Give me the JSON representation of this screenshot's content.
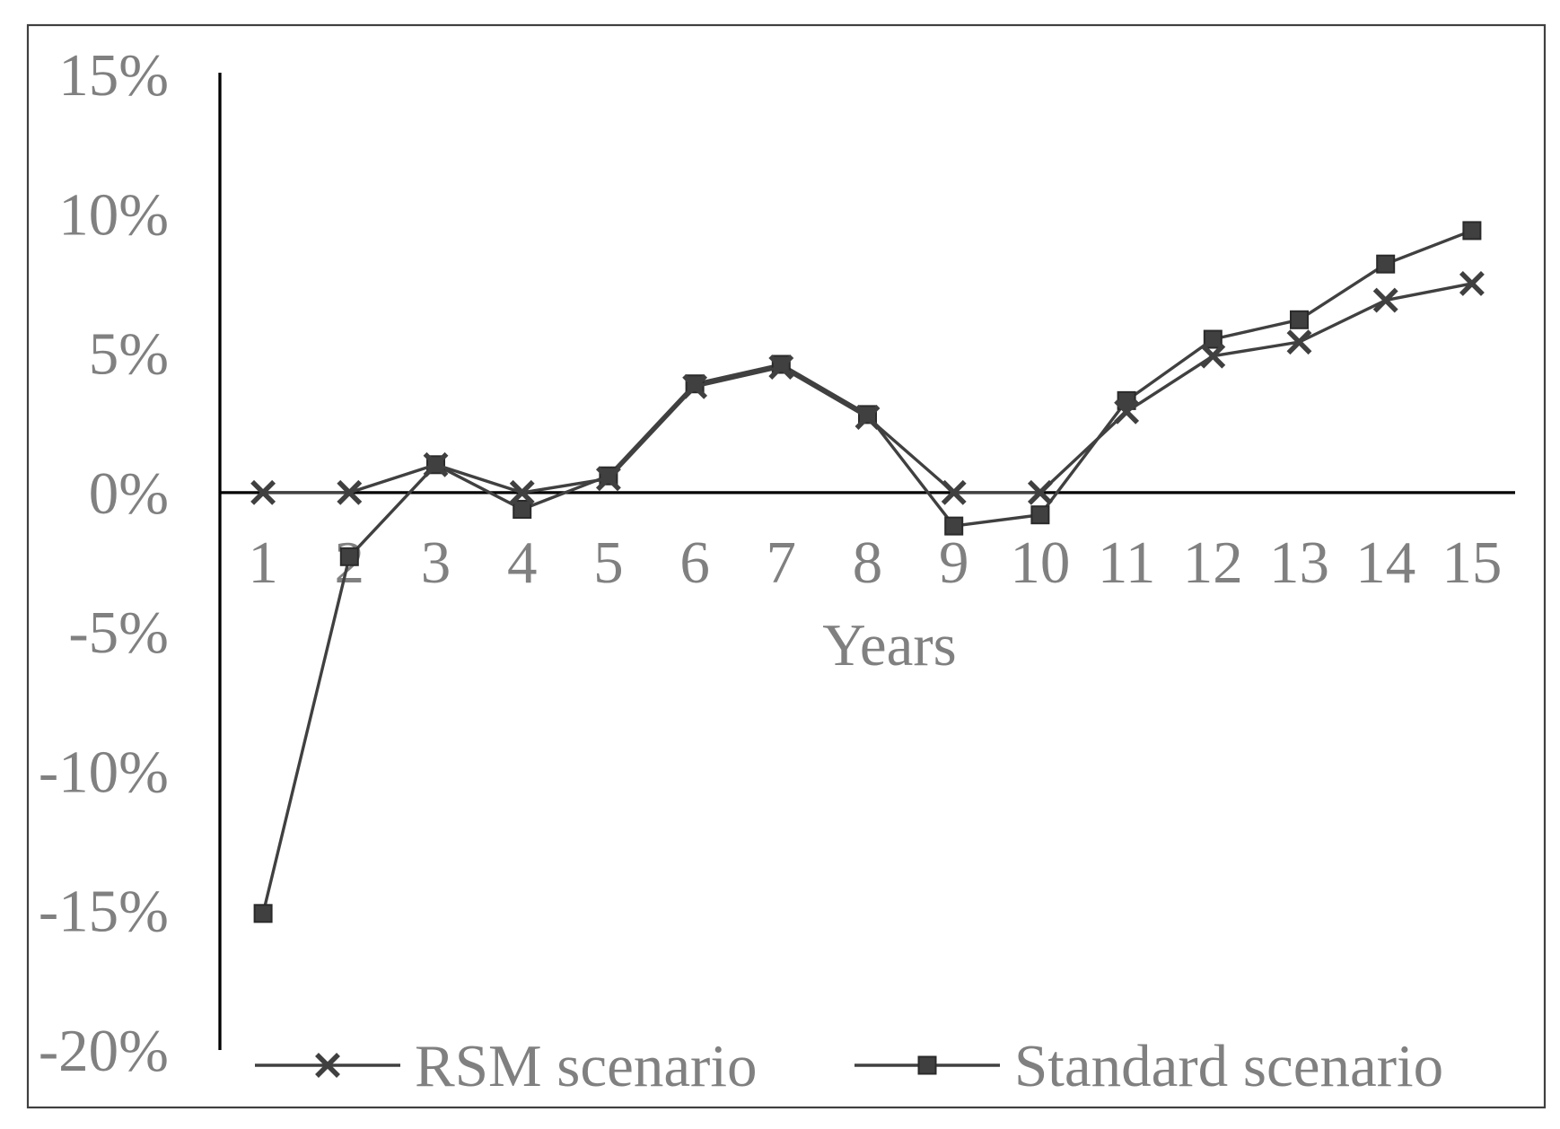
{
  "chart_data": {
    "type": "line",
    "xlabel": "Years",
    "x": [
      "1",
      "2",
      "3",
      "4",
      "5",
      "6",
      "7",
      "8",
      "9",
      "10",
      "11",
      "12",
      "13",
      "14",
      "15"
    ],
    "ylim": [
      -20,
      15
    ],
    "yticks": [
      15,
      10,
      5,
      0,
      -5,
      -10,
      -15,
      -20
    ],
    "ytick_labels": [
      "15%",
      "10%",
      "5%",
      "0%",
      "-5%",
      "-10%",
      "-15%",
      "-20%"
    ],
    "x_axis_crosses": 0,
    "grid": false,
    "legend": "bottom",
    "text_color": "#808080",
    "axis_color": "#000000",
    "series": [
      {
        "name": "RSM scenario",
        "marker": "cross",
        "color": "#404040",
        "values": [
          0.0,
          0.0,
          1.0,
          0.0,
          0.5,
          3.8,
          4.5,
          2.7,
          0.0,
          0.0,
          2.9,
          4.9,
          5.4,
          6.9,
          7.5
        ]
      },
      {
        "name": "Standard scenario",
        "marker": "square",
        "color": "#404040",
        "values": [
          -15.1,
          -2.3,
          1.0,
          -0.6,
          0.6,
          3.9,
          4.6,
          2.8,
          -1.2,
          -0.8,
          3.3,
          5.5,
          6.2,
          8.2,
          9.4
        ]
      }
    ]
  }
}
